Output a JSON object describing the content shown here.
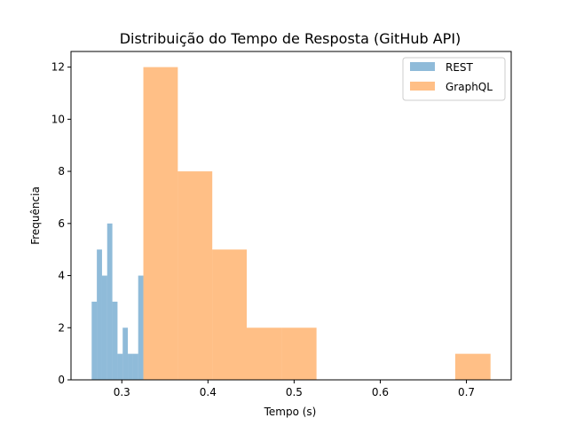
{
  "chart_data": {
    "type": "histogram",
    "title": "Distribuição do Tempo de Resposta (GitHub API)",
    "xlabel": "Tempo (s)",
    "ylabel": "Frequência",
    "xlim": [
      0.241,
      0.752
    ],
    "ylim": [
      0,
      12.6
    ],
    "xticks": [
      0.3,
      0.4,
      0.5,
      0.6,
      0.7
    ],
    "xtick_labels": [
      "0.3",
      "0.4",
      "0.5",
      "0.6",
      "0.7"
    ],
    "yticks": [
      0,
      2,
      4,
      6,
      8,
      10,
      12
    ],
    "ytick_labels": [
      "0",
      "2",
      "4",
      "6",
      "8",
      "10",
      "12"
    ],
    "grid": false,
    "legend_position": "top-right",
    "series": [
      {
        "name": "REST",
        "color": "#1f77b4",
        "alpha": 0.5,
        "bin_edges": [
          0.265,
          0.271,
          0.277,
          0.283,
          0.289,
          0.295,
          0.301,
          0.307,
          0.313,
          0.319,
          0.325
        ],
        "counts": [
          3,
          5,
          4,
          6,
          3,
          1,
          2,
          1,
          1,
          4
        ]
      },
      {
        "name": "GraphQL",
        "color": "#ff7f0e",
        "alpha": 0.5,
        "bin_edges": [
          0.325,
          0.365,
          0.405,
          0.445,
          0.486,
          0.526,
          0.566,
          0.607,
          0.647,
          0.687,
          0.728
        ],
        "counts": [
          12,
          8,
          5,
          2,
          2,
          0,
          0,
          0,
          0,
          1
        ]
      }
    ]
  }
}
